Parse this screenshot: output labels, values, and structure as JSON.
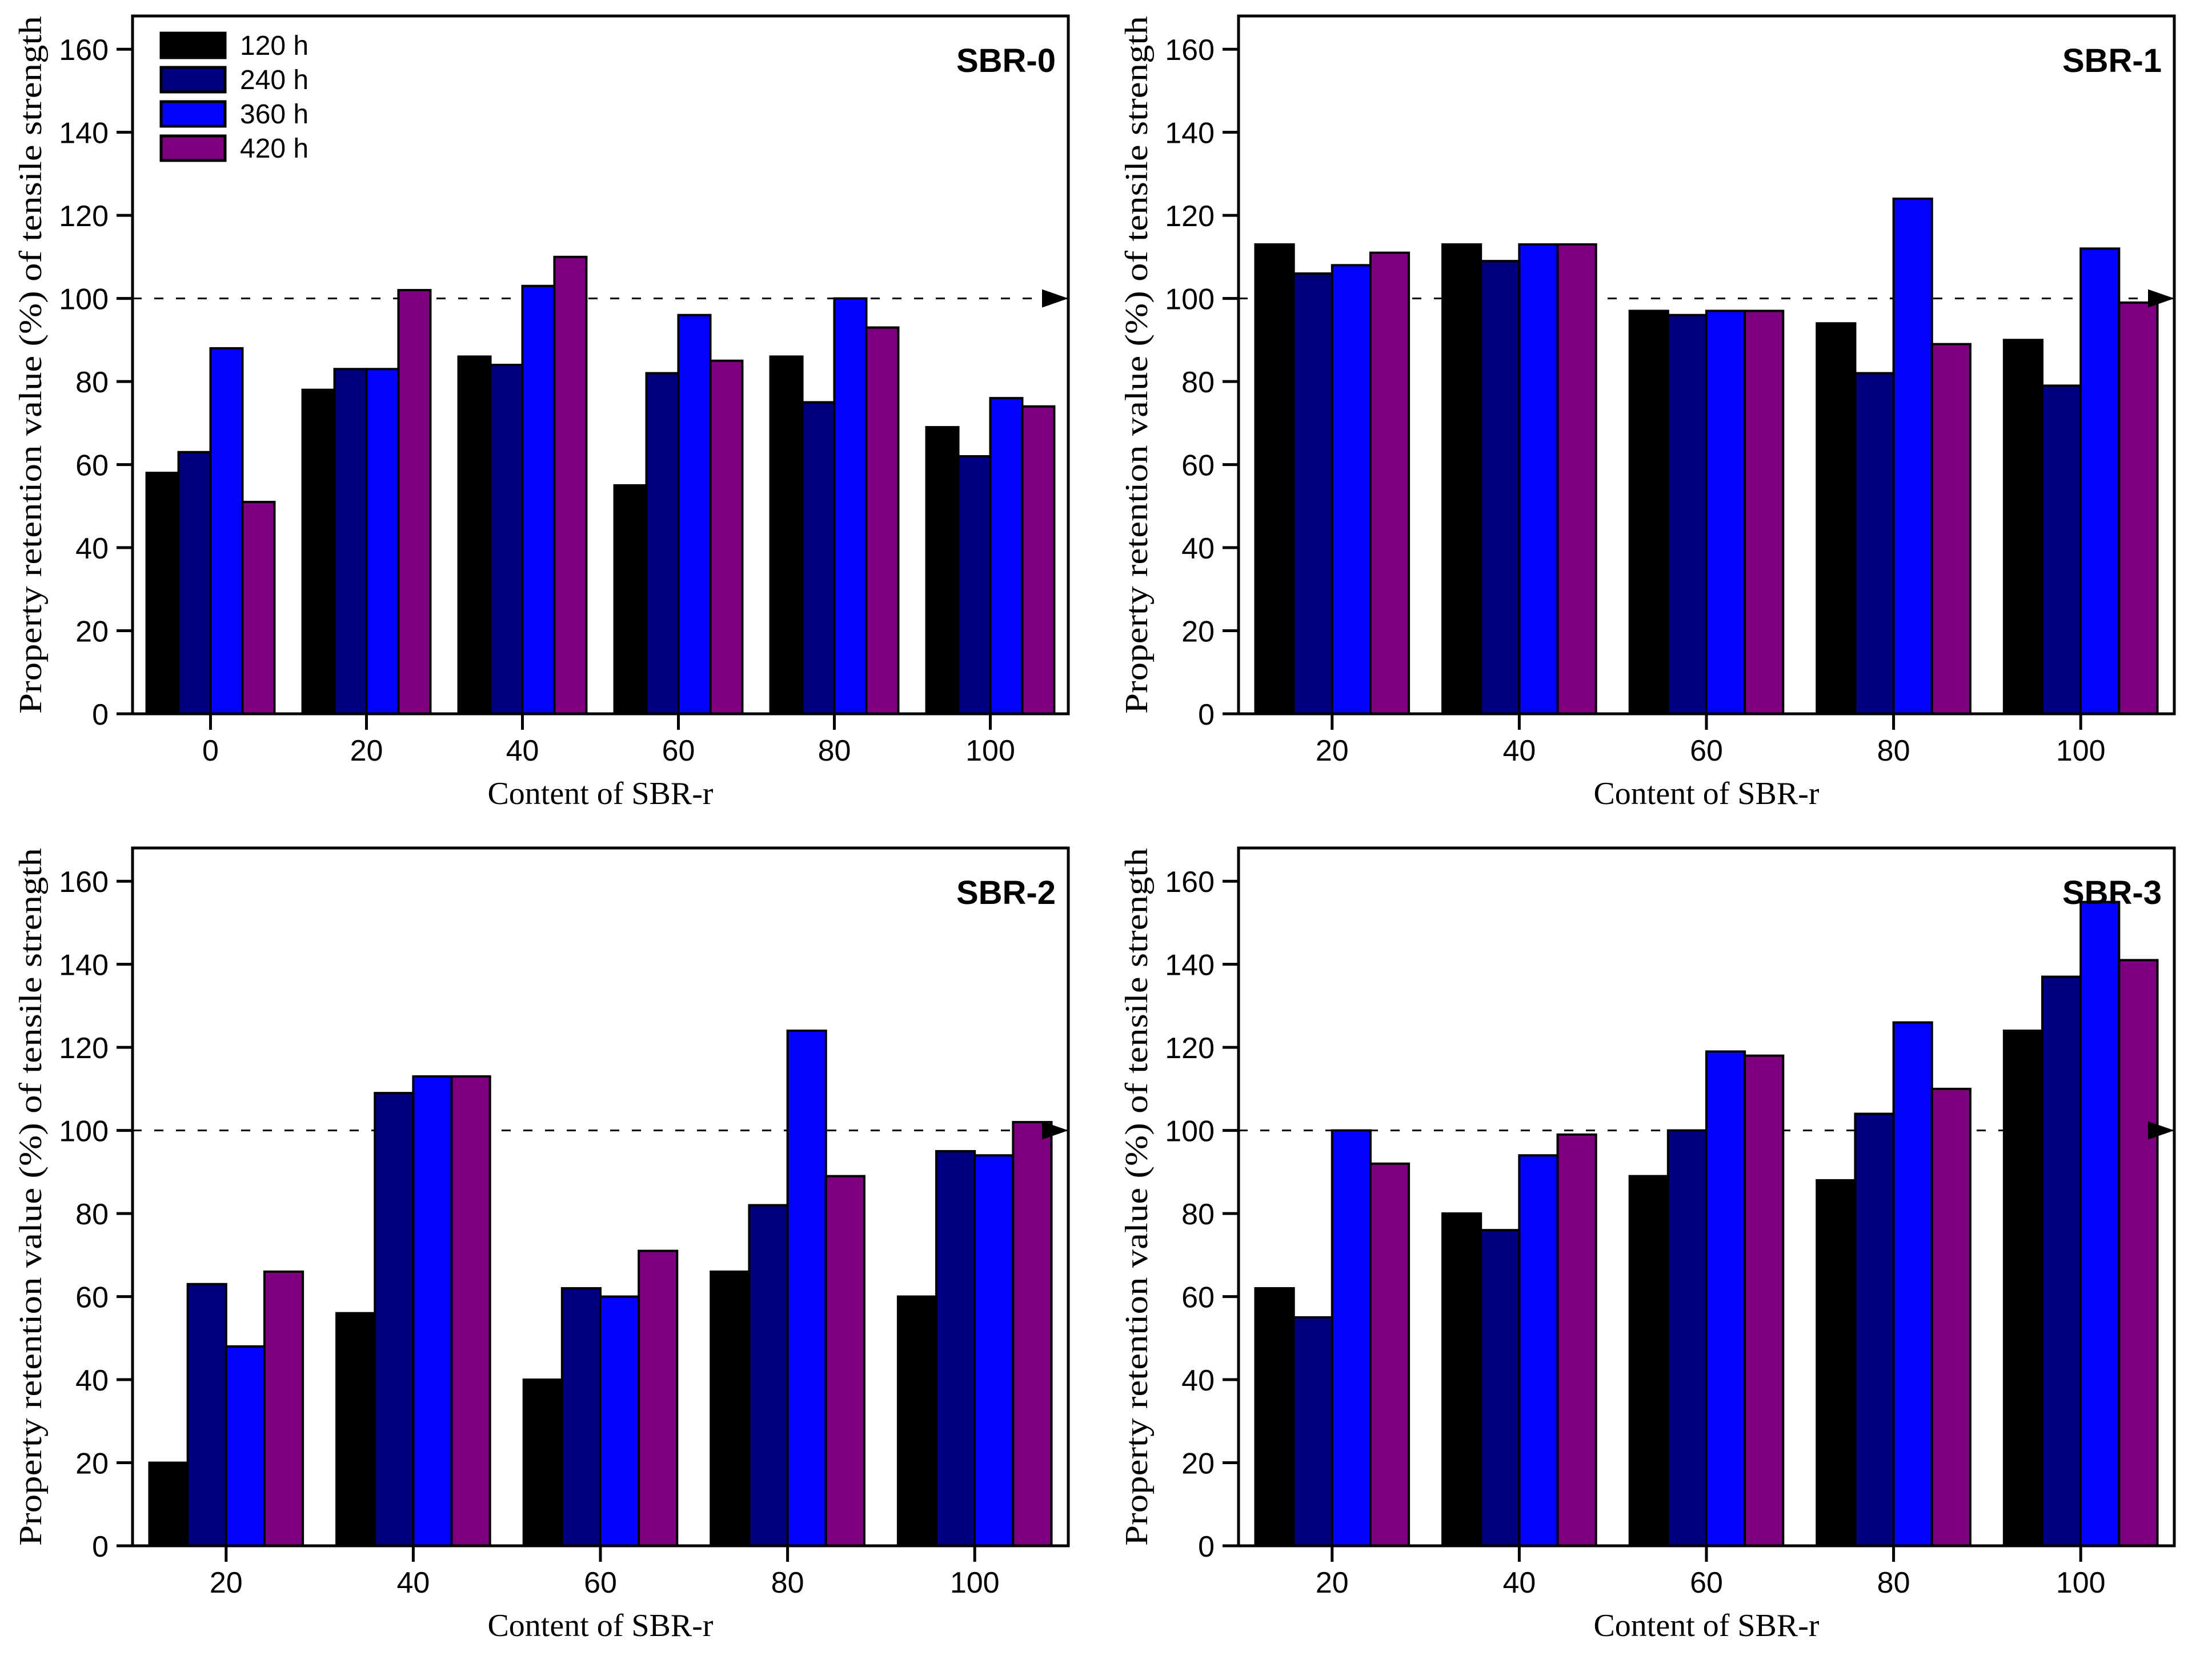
{
  "figure": {
    "series_labels": [
      "120 h",
      "240 h",
      "360 h",
      "420 h"
    ],
    "series_colors": [
      "#000000",
      "#00007e",
      "#0303fd",
      "#7e007e"
    ],
    "outline_color": "#000000",
    "background_color": "#ffffff",
    "reference_line_value": 100
  },
  "chart_data": [
    {
      "type": "bar",
      "title": "SBR-0",
      "xlabel": "Content of SBR-r",
      "ylabel": "Property retention value (%) of tensile strength",
      "categories": [
        "0",
        "20",
        "40",
        "60",
        "80",
        "100"
      ],
      "yticks": [
        0,
        20,
        40,
        60,
        80,
        100,
        120,
        140,
        160
      ],
      "ylim": [
        0,
        168
      ],
      "grid": false,
      "legend": true,
      "legend_position": "top-left",
      "reference_line": 100,
      "series": [
        {
          "name": "120 h",
          "values": [
            58,
            78,
            86,
            55,
            86,
            69
          ]
        },
        {
          "name": "240 h",
          "values": [
            63,
            83,
            84,
            82,
            75,
            62
          ]
        },
        {
          "name": "360 h",
          "values": [
            88,
            83,
            103,
            96,
            100,
            76
          ]
        },
        {
          "name": "420 h",
          "values": [
            51,
            102,
            110,
            85,
            93,
            74
          ]
        }
      ]
    },
    {
      "type": "bar",
      "title": "SBR-1",
      "xlabel": "Content of SBR-r",
      "ylabel": "Property retention value (%) of tensile strength",
      "categories": [
        "20",
        "40",
        "60",
        "80",
        "100"
      ],
      "yticks": [
        0,
        20,
        40,
        60,
        80,
        100,
        120,
        140,
        160
      ],
      "ylim": [
        0,
        168
      ],
      "grid": false,
      "legend": false,
      "reference_line": 100,
      "series": [
        {
          "name": "120 h",
          "values": [
            113,
            113,
            97,
            94,
            90
          ]
        },
        {
          "name": "240 h",
          "values": [
            106,
            109,
            96,
            82,
            79
          ]
        },
        {
          "name": "360 h",
          "values": [
            108,
            113,
            97,
            124,
            112
          ]
        },
        {
          "name": "420 h",
          "values": [
            111,
            113,
            97,
            89,
            99
          ]
        }
      ]
    },
    {
      "type": "bar",
      "title": "SBR-2",
      "xlabel": "Content of SBR-r",
      "ylabel": "Property retention value (%) of tensile strength",
      "categories": [
        "20",
        "40",
        "60",
        "80",
        "100"
      ],
      "yticks": [
        0,
        20,
        40,
        60,
        80,
        100,
        120,
        140,
        160
      ],
      "ylim": [
        0,
        168
      ],
      "grid": false,
      "legend": false,
      "reference_line": 100,
      "series": [
        {
          "name": "120 h",
          "values": [
            20,
            56,
            40,
            66,
            60
          ]
        },
        {
          "name": "240 h",
          "values": [
            63,
            109,
            62,
            82,
            95
          ]
        },
        {
          "name": "360 h",
          "values": [
            48,
            113,
            60,
            124,
            94
          ]
        },
        {
          "name": "420 h",
          "values": [
            66,
            113,
            71,
            89,
            102
          ]
        }
      ]
    },
    {
      "type": "bar",
      "title": "SBR-3",
      "xlabel": "Content of SBR-r",
      "ylabel": "Property retention value (%) of tensile strength",
      "categories": [
        "20",
        "40",
        "60",
        "80",
        "100"
      ],
      "yticks": [
        0,
        20,
        40,
        60,
        80,
        100,
        120,
        140,
        160
      ],
      "ylim": [
        0,
        168
      ],
      "grid": false,
      "legend": false,
      "reference_line": 100,
      "series": [
        {
          "name": "120 h",
          "values": [
            62,
            80,
            89,
            88,
            124
          ]
        },
        {
          "name": "240 h",
          "values": [
            55,
            76,
            100,
            104,
            137
          ]
        },
        {
          "name": "360 h",
          "values": [
            100,
            94,
            119,
            126,
            155
          ]
        },
        {
          "name": "420 h",
          "values": [
            92,
            99,
            118,
            110,
            141
          ]
        }
      ]
    }
  ]
}
